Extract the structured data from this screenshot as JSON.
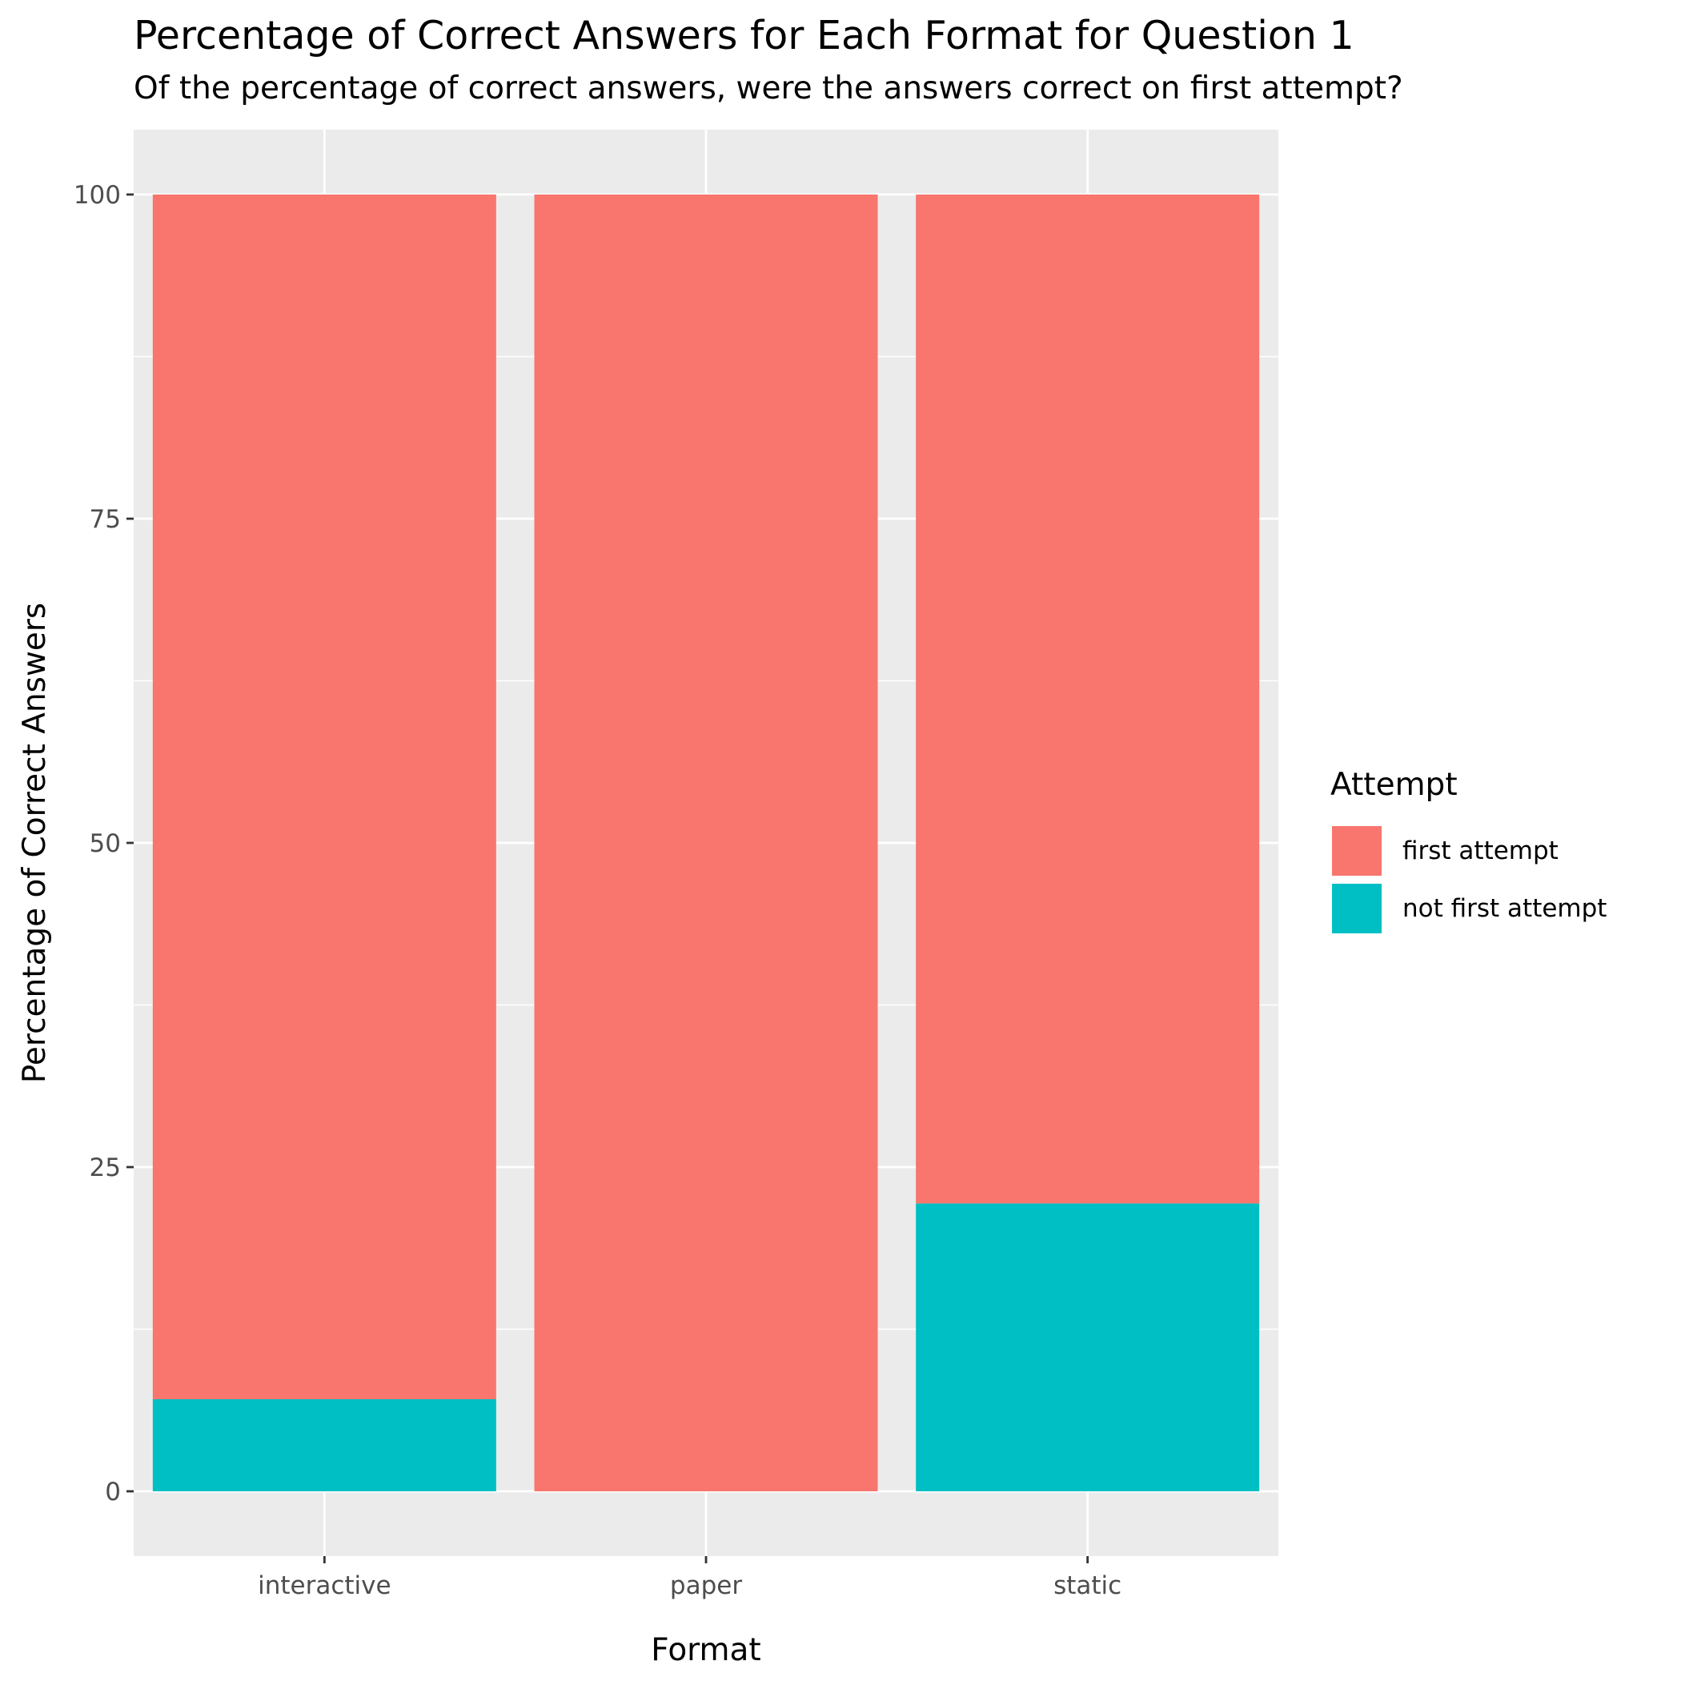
{
  "chart_data": {
    "type": "bar",
    "stacked": true,
    "title": "Percentage of Correct Answers for Each Format for Question 1",
    "subtitle": "Of the percentage of correct answers, were the answers correct on first attempt?",
    "xlabel": "Format",
    "ylabel": "Percentage of Correct Answers",
    "categories": [
      "interactive",
      "paper",
      "static"
    ],
    "series": [
      {
        "name": "not first attempt",
        "color": "#00BFC4",
        "values": [
          7.1,
          0,
          22.2
        ]
      },
      {
        "name": "first attempt",
        "color": "#F8766D",
        "values": [
          92.9,
          100,
          77.8
        ]
      }
    ],
    "ylim": [
      -5,
      105
    ],
    "yticks": [
      0,
      25,
      50,
      75,
      100
    ],
    "grid": true,
    "legend": {
      "title": "Attempt",
      "placement": "right",
      "entries": [
        {
          "label": "first attempt",
          "color": "#F8766D"
        },
        {
          "label": "not first attempt",
          "color": "#00BFC4"
        }
      ]
    }
  }
}
